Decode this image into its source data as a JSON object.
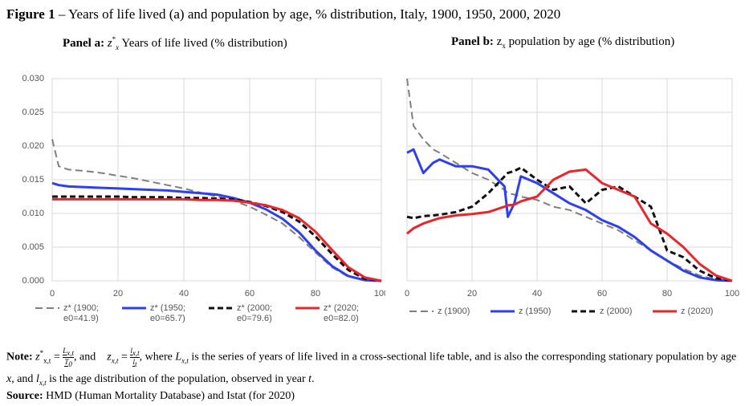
{
  "figure_title": {
    "label": "Figure 1",
    "text": " – Years of life lived (a) and population by age, % distribution, Italy, 1900, 1950, 2000, 2020"
  },
  "chart_data": [
    {
      "type": "line",
      "panel_label": "Panel a:",
      "symbol": "z",
      "symbol_sup": "*",
      "symbol_sub": "x",
      "title": "Years of life lived (% distribution)",
      "x": [
        0,
        2,
        5,
        10,
        15,
        20,
        25,
        30,
        35,
        40,
        45,
        50,
        55,
        60,
        65,
        70,
        75,
        80,
        85,
        90,
        95,
        100
      ],
      "xlim": [
        0,
        100
      ],
      "xticks": [
        0,
        20,
        40,
        60,
        80,
        100
      ],
      "ylim": [
        0,
        0.03
      ],
      "yticks": [
        {
          "value": 0,
          "label": "0.000"
        },
        {
          "value": 0.005,
          "label": "0.005"
        },
        {
          "value": 0.01,
          "label": "0.010"
        },
        {
          "value": 0.015,
          "label": "0.015"
        },
        {
          "value": 0.02,
          "label": "0.020"
        },
        {
          "value": 0.025,
          "label": "0.025"
        },
        {
          "value": 0.03,
          "label": "0.030"
        }
      ],
      "y_tick_labels": true,
      "grid": true,
      "series": [
        {
          "name": "z* (1900; e0=41.9)",
          "color": "#7f7f7f",
          "style": "dashed",
          "values": [
            0.021,
            0.017,
            0.0165,
            0.0163,
            0.016,
            0.0156,
            0.0152,
            0.0147,
            0.0142,
            0.0137,
            0.0131,
            0.0125,
            0.0119,
            0.011,
            0.0098,
            0.0085,
            0.0065,
            0.0042,
            0.002,
            0.0006,
            0.0001,
            0
          ]
        },
        {
          "name": "z* (1950; e0=65.7)",
          "color": "#2e3ff0",
          "style": "solid",
          "values": [
            0.0145,
            0.0142,
            0.014,
            0.0139,
            0.0138,
            0.0137,
            0.0136,
            0.0135,
            0.0134,
            0.0132,
            0.013,
            0.0128,
            0.0123,
            0.0116,
            0.0106,
            0.0092,
            0.0072,
            0.0045,
            0.0022,
            0.0007,
            0.0001,
            0
          ]
        },
        {
          "name": "z* (2000; e0=79.6)",
          "color": "#111111",
          "style": "dashed",
          "values": [
            0.0125,
            0.0125,
            0.0125,
            0.0125,
            0.0125,
            0.0125,
            0.0124,
            0.0124,
            0.0124,
            0.0123,
            0.0123,
            0.0122,
            0.0121,
            0.0117,
            0.0111,
            0.0102,
            0.0088,
            0.0066,
            0.004,
            0.0016,
            0.0003,
            0
          ]
        },
        {
          "name": "z* (2020; e0=82.0)",
          "color": "#e8262b",
          "style": "solid",
          "values": [
            0.0121,
            0.0121,
            0.0121,
            0.0121,
            0.0121,
            0.0121,
            0.0121,
            0.0121,
            0.0121,
            0.0121,
            0.012,
            0.012,
            0.0119,
            0.0116,
            0.0112,
            0.0105,
            0.0093,
            0.0073,
            0.0046,
            0.002,
            0.0005,
            0
          ]
        }
      ]
    },
    {
      "type": "line",
      "panel_label": "Panel b:",
      "symbol": "z",
      "symbol_sub": "x",
      "title": " population by age (% distribution)",
      "x": [
        0,
        2,
        5,
        8,
        10,
        15,
        20,
        25,
        30,
        31,
        33,
        35,
        40,
        45,
        50,
        55,
        60,
        65,
        70,
        75,
        80,
        85,
        90,
        95,
        100
      ],
      "xlim": [
        0,
        100
      ],
      "xticks": [
        0,
        20,
        40,
        60,
        80,
        100
      ],
      "ylim": [
        0,
        0.03
      ],
      "yticks": [
        0,
        0.005,
        0.01,
        0.015,
        0.02,
        0.025,
        0.03
      ],
      "y_tick_labels": false,
      "grid": true,
      "series": [
        {
          "name": "z (1900)",
          "color": "#7f7f7f",
          "style": "dashed",
          "values": [
            0.03,
            0.023,
            0.021,
            0.0195,
            0.019,
            0.0175,
            0.016,
            0.015,
            0.0135,
            0.013,
            0.0128,
            0.0125,
            0.012,
            0.011,
            0.0105,
            0.0095,
            0.0085,
            0.0075,
            0.006,
            0.0045,
            0.003,
            0.0018,
            0.0008,
            0.0002,
            0
          ]
        },
        {
          "name": "z (1950)",
          "color": "#2e3ff0",
          "style": "solid",
          "values": [
            0.019,
            0.0195,
            0.016,
            0.0175,
            0.018,
            0.017,
            0.017,
            0.0165,
            0.014,
            0.0095,
            0.0115,
            0.0155,
            0.0145,
            0.013,
            0.0115,
            0.0105,
            0.009,
            0.008,
            0.0065,
            0.0045,
            0.003,
            0.0015,
            0.0005,
            0.0001,
            0
          ]
        },
        {
          "name": "z (2000)",
          "color": "#111111",
          "style": "dashed",
          "values": [
            0.0095,
            0.0093,
            0.0096,
            0.0097,
            0.0098,
            0.0102,
            0.011,
            0.013,
            0.0155,
            0.016,
            0.0163,
            0.0168,
            0.015,
            0.0135,
            0.014,
            0.0115,
            0.0135,
            0.014,
            0.0125,
            0.011,
            0.0045,
            0.0035,
            0.0015,
            0.0004,
            0
          ]
        },
        {
          "name": "z (2020)",
          "color": "#e8262b",
          "style": "solid",
          "values": [
            0.007,
            0.0078,
            0.0085,
            0.009,
            0.0093,
            0.0097,
            0.0099,
            0.0102,
            0.011,
            0.0112,
            0.0113,
            0.0118,
            0.0125,
            0.015,
            0.0162,
            0.0165,
            0.0145,
            0.0135,
            0.0125,
            0.0085,
            0.007,
            0.005,
            0.0025,
            0.0008,
            0
          ]
        }
      ]
    }
  ],
  "note": {
    "label": "Note:",
    "parts": [
      "z",
      "*",
      "x,t",
      "=",
      "L",
      "x,t",
      "T",
      "0",
      ", and",
      "z",
      "x,t",
      "=",
      "l",
      "x,t",
      "l",
      "t",
      ", where ",
      "L",
      "x,t",
      " is the series of years of life lived in a cross-sectional life table, and is also the corresponding stationary population by age ",
      "x",
      ", and ",
      "l",
      "x,t",
      " is the age distribution of the population, observed in year ",
      "t",
      "."
    ]
  },
  "source": {
    "label": "Source:",
    "text": " HMD (Human Mortality Database) and Istat (for 2020)"
  }
}
